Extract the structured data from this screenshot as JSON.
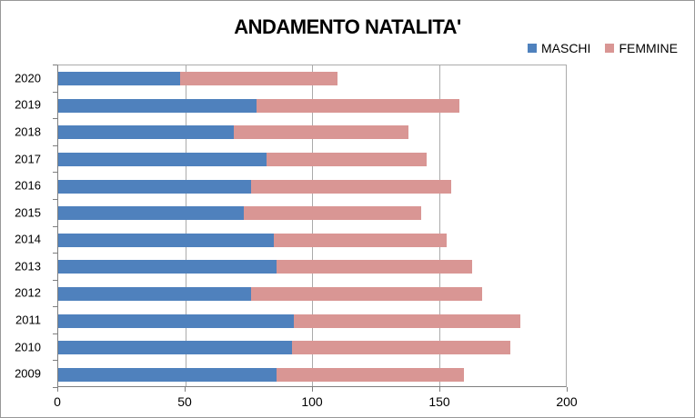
{
  "chart_data": {
    "type": "bar",
    "orientation": "horizontal",
    "stacked": true,
    "title": "ANDAMENTO NATALITA'",
    "categories": [
      "2020",
      "2019",
      "2018",
      "2017",
      "2016",
      "2015",
      "2014",
      "2013",
      "2012",
      "2011",
      "2010",
      "2009"
    ],
    "series": [
      {
        "name": "MASCHI",
        "color": "#4F81BD",
        "values": [
          48,
          78,
          69,
          82,
          76,
          73,
          85,
          86,
          76,
          93,
          92,
          86
        ]
      },
      {
        "name": "FEMMINE",
        "color": "#D99694",
        "values": [
          62,
          80,
          69,
          63,
          79,
          70,
          68,
          77,
          91,
          89,
          86,
          74
        ]
      }
    ],
    "totals": [
      110,
      158,
      138,
      145,
      155,
      143,
      153,
      163,
      167,
      182,
      178,
      160
    ],
    "x_ticks": [
      "0",
      "50",
      "100",
      "150",
      "200"
    ],
    "xlim": [
      0,
      200
    ],
    "legend_position": "top-right",
    "grid": "vertical-gridlines",
    "background": "#FFFFFF",
    "border_color": "#989898"
  }
}
